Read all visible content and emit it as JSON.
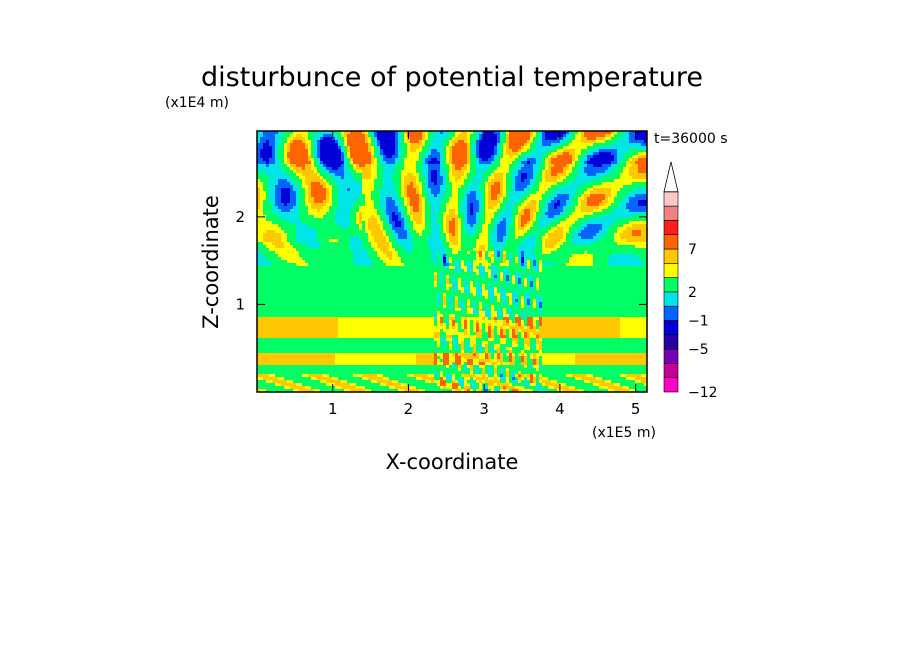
{
  "chart_data": {
    "type": "heatmap",
    "title": "disturbunce of potential temperature",
    "xlabel": "X-coordinate",
    "ylabel": "Z-coordinate",
    "x_scale_label": "(x1E5 m)",
    "y_scale_label": "(x1E4 m)",
    "time_label": "t=36000 s",
    "xlim": [
      0,
      5.15
    ],
    "ylim": [
      0,
      2.98
    ],
    "x_ticks": [
      "1",
      "2",
      "3",
      "4",
      "5"
    ],
    "x_tick_values": [
      1,
      2,
      3,
      4,
      5
    ],
    "y_ticks": [
      "1",
      "2"
    ],
    "y_tick_values": [
      1,
      2
    ],
    "colorbar": {
      "tick_labels": [
        "7",
        "2",
        "−1",
        "−5",
        "−12"
      ],
      "tick_level_index": [
        10,
        7,
        5,
        3,
        0
      ],
      "colors_bottom_to_top": [
        "#ff00c8",
        "#c40096",
        "#7800b4",
        "#2800a0",
        "#0000d8",
        "#0064ff",
        "#00e6e6",
        "#00ff64",
        "#ffff00",
        "#ffc800",
        "#ff6400",
        "#ff1e1e",
        "#f08282",
        "#ffc8c8"
      ]
    },
    "field_colors": {
      "deep_neg": "#0000d8",
      "mid_neg": "#0064ff",
      "neg": "#00e6e6",
      "zero": "#00ff64",
      "pos": "#ffff00",
      "mid_pos": "#ffc800",
      "strong_pos": "#ff6400"
    }
  }
}
